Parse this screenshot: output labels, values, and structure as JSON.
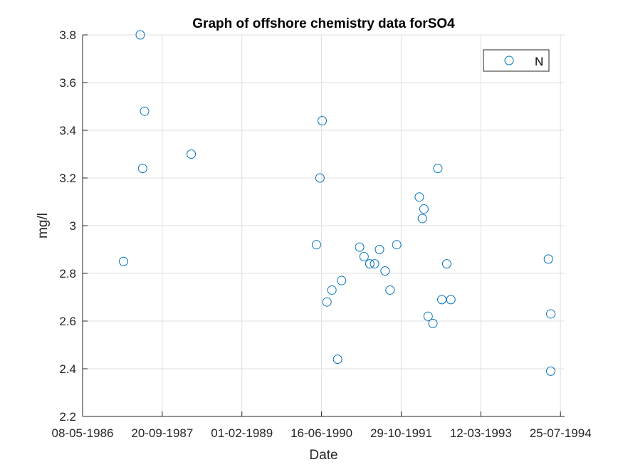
{
  "chart_data": {
    "type": "scatter",
    "title": "Graph of offshore chemistry data forSO4",
    "xlabel": "Date",
    "ylabel": "mg/l",
    "x_tick_labels": [
      "08-05-1986",
      "20-09-1987",
      "01-02-1989",
      "16-06-1990",
      "29-10-1991",
      "12-03-1993",
      "25-07-1994"
    ],
    "x_ticks": [
      "1986-05-08",
      "1987-09-20",
      "1989-02-01",
      "1990-06-16",
      "1991-10-29",
      "1993-03-12",
      "1994-07-25"
    ],
    "xlim": [
      "1986-05-08",
      "1994-08-20"
    ],
    "y_tick_labels": [
      "2.2",
      "2.4",
      "2.6",
      "2.8",
      "3",
      "3.2",
      "3.4",
      "3.6",
      "3.8"
    ],
    "y_ticks": [
      2.2,
      2.4,
      2.6,
      2.8,
      3.0,
      3.2,
      3.4,
      3.6,
      3.8
    ],
    "ylim": [
      2.2,
      3.8
    ],
    "grid": true,
    "legend_position": "top-right",
    "series": [
      {
        "name": "N",
        "color": "#0072BD",
        "marker": "circle",
        "x": [
          "1987-01-20",
          "1987-05-05",
          "1987-05-20",
          "1987-06-01",
          "1988-03-20",
          "1990-05-15",
          "1990-06-06",
          "1990-06-20",
          "1990-07-20",
          "1990-08-20",
          "1990-09-25",
          "1990-10-20",
          "1991-02-10",
          "1991-03-10",
          "1991-04-15",
          "1991-05-15",
          "1991-06-15",
          "1991-07-20",
          "1991-08-20",
          "1991-10-01",
          "1992-02-20",
          "1992-03-10",
          "1992-03-20",
          "1992-04-15",
          "1992-05-15",
          "1992-06-15",
          "1992-07-10",
          "1992-08-10",
          "1992-09-05",
          "1994-05-10",
          "1994-05-25",
          "1994-05-25"
        ],
        "y": [
          2.85,
          3.8,
          3.24,
          3.48,
          3.3,
          2.92,
          3.2,
          3.44,
          2.68,
          2.73,
          2.44,
          2.77,
          2.91,
          2.87,
          2.84,
          2.84,
          2.9,
          2.81,
          2.73,
          2.92,
          3.12,
          3.03,
          3.07,
          2.62,
          2.59,
          3.24,
          2.69,
          2.84,
          2.69,
          2.86,
          2.63,
          2.39
        ]
      }
    ]
  }
}
